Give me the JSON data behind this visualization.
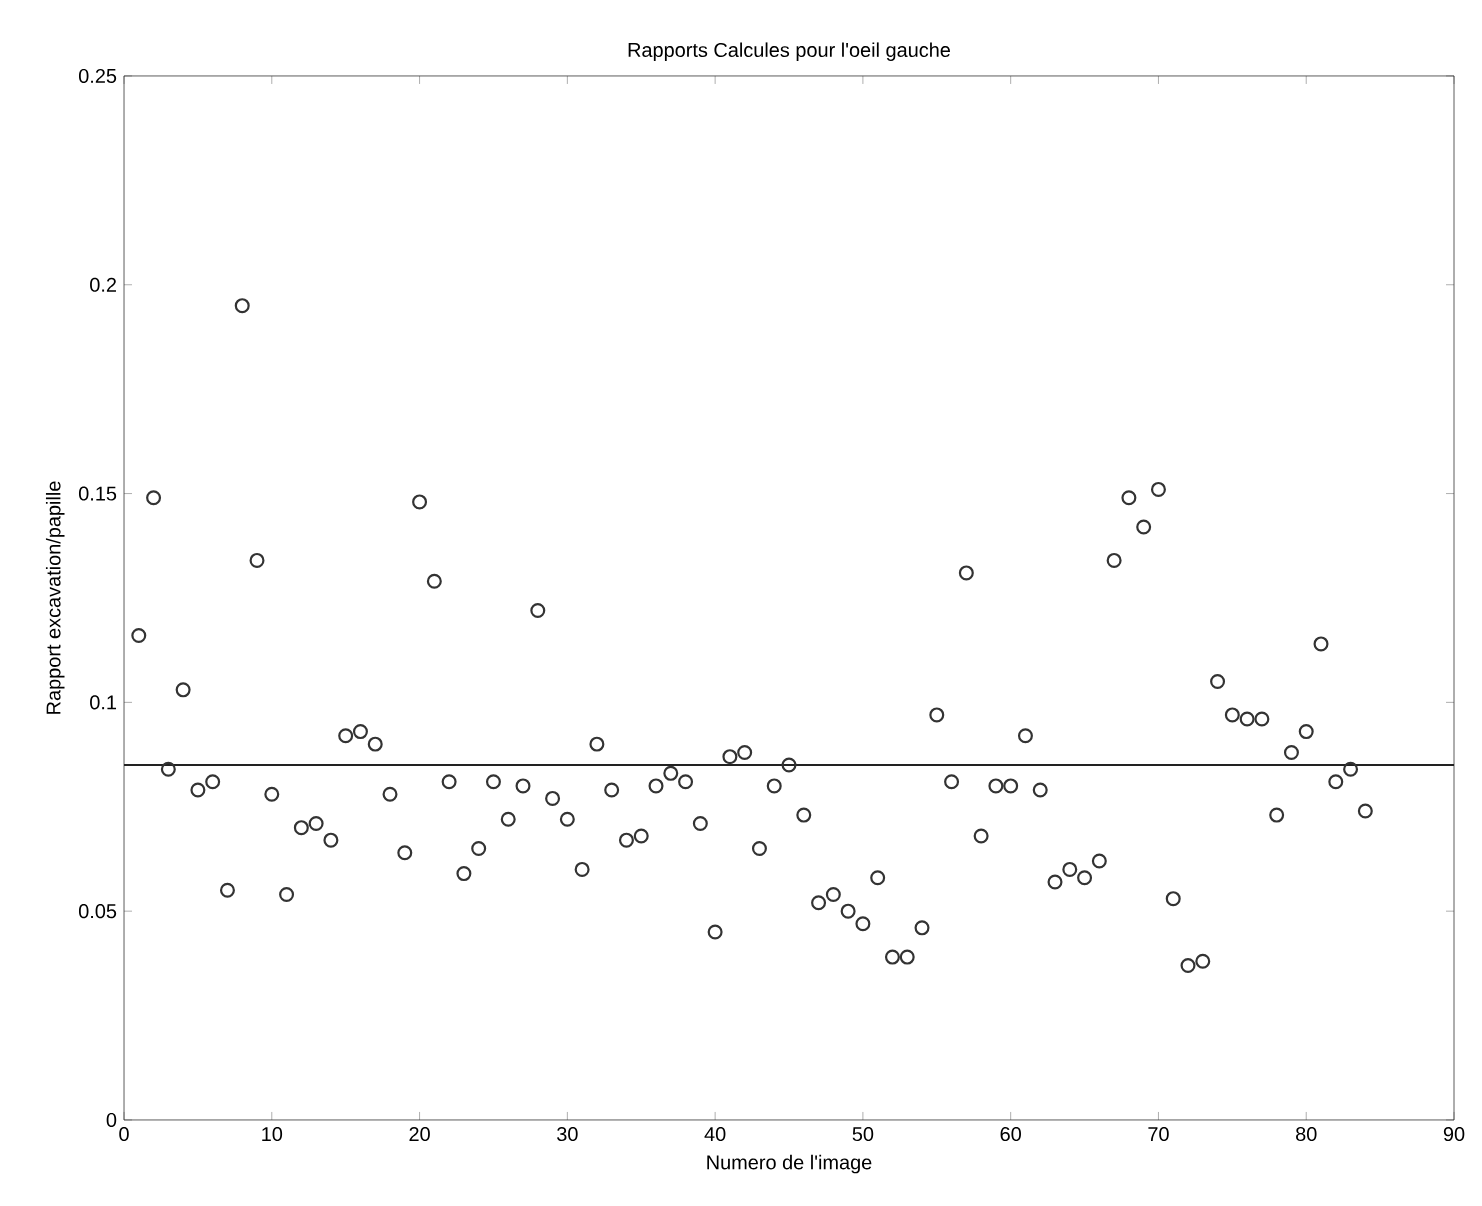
{
  "chart_data": {
    "type": "scatter",
    "title": "Rapports Calcules pour l'oeil gauche",
    "xlabel": "Numero de l'image",
    "ylabel": "Rapport excavation/papille",
    "x": [
      1,
      2,
      3,
      4,
      5,
      6,
      7,
      8,
      9,
      10,
      11,
      12,
      13,
      14,
      15,
      16,
      17,
      18,
      19,
      20,
      21,
      22,
      23,
      24,
      25,
      26,
      27,
      28,
      29,
      30,
      31,
      32,
      33,
      34,
      35,
      36,
      37,
      38,
      39,
      40,
      41,
      42,
      43,
      44,
      45,
      46,
      47,
      48,
      49,
      50,
      51,
      52,
      53,
      54,
      55,
      56,
      57,
      58,
      59,
      60,
      61,
      62,
      63,
      64,
      65,
      66,
      67,
      68,
      69,
      70,
      71,
      72,
      73,
      74,
      75,
      76,
      77,
      78,
      79,
      80,
      81,
      82,
      83,
      84
    ],
    "values": [
      0.116,
      0.149,
      0.084,
      0.103,
      0.079,
      0.081,
      0.055,
      0.195,
      0.134,
      0.078,
      0.054,
      0.07,
      0.071,
      0.067,
      0.092,
      0.093,
      0.09,
      0.078,
      0.064,
      0.148,
      0.129,
      0.081,
      0.059,
      0.065,
      0.081,
      0.072,
      0.08,
      0.122,
      0.077,
      0.072,
      0.06,
      0.09,
      0.079,
      0.067,
      0.068,
      0.08,
      0.083,
      0.081,
      0.071,
      0.045,
      0.087,
      0.088,
      0.065,
      0.08,
      0.085,
      0.073,
      0.052,
      0.054,
      0.05,
      0.047,
      0.058,
      0.039,
      0.039,
      0.046,
      0.097,
      0.081,
      0.131,
      0.068,
      0.08,
      0.08,
      0.092,
      0.079,
      0.057,
      0.06,
      0.058,
      0.062,
      0.134,
      0.149,
      0.142,
      0.151,
      0.053,
      0.037,
      0.038,
      0.105,
      0.097,
      0.096,
      0.096,
      0.073,
      0.088,
      0.093,
      0.114,
      0.081,
      0.084,
      0.074
    ],
    "color": "#333333",
    "marker": "circle",
    "xlim": [
      0,
      90
    ],
    "ylim": [
      0,
      0.25
    ],
    "xticks": [
      0,
      10,
      20,
      30,
      40,
      50,
      60,
      70,
      80,
      90
    ],
    "yticks": [
      0,
      0.05,
      0.1,
      0.15,
      0.2,
      0.25
    ],
    "ref_lines": [
      {
        "axis": "y",
        "value": 0.085,
        "color": "#222222"
      }
    ]
  }
}
